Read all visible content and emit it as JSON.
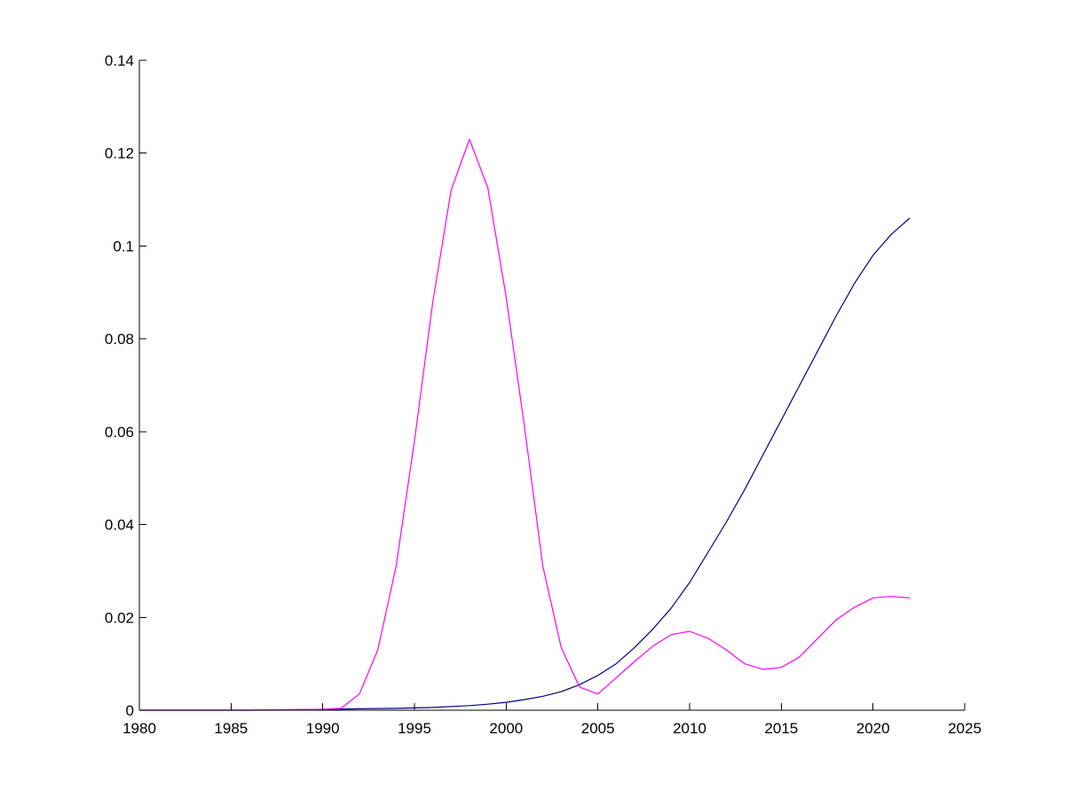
{
  "chart_data": {
    "type": "line",
    "title": "",
    "xlabel": "",
    "ylabel": "",
    "xlim": [
      1980,
      2025
    ],
    "ylim": [
      0,
      0.14
    ],
    "xticks": [
      1980,
      1985,
      1990,
      1995,
      2000,
      2005,
      2010,
      2015,
      2020,
      2025
    ],
    "yticks": [
      0,
      0.02,
      0.04,
      0.06,
      0.08,
      0.1,
      0.12,
      0.14
    ],
    "xtick_labels": [
      "1980",
      "1985",
      "1990",
      "1995",
      "2000",
      "2005",
      "2010",
      "2015",
      "2020",
      "2025"
    ],
    "ytick_labels": [
      "0",
      "0.02",
      "0.04",
      "0.06",
      "0.08",
      "0.1",
      "0.12",
      "0.14"
    ],
    "grid": false,
    "legend": "none",
    "series": [
      {
        "color": "#000080",
        "x": [
          1980,
          1982,
          1984,
          1986,
          1988,
          1990,
          1992,
          1994,
          1995,
          1996,
          1997,
          1998,
          1999,
          2000,
          2001,
          2002,
          2003,
          2004,
          2005,
          2006,
          2007,
          2008,
          2009,
          2010,
          2011,
          2012,
          2013,
          2014,
          2015,
          2016,
          2017,
          2018,
          2019,
          2020,
          2021,
          2022
        ],
        "y": [
          0,
          0,
          0,
          0,
          0.0001,
          0.0002,
          0.0003,
          0.0004,
          0.0005,
          0.0006,
          0.0008,
          0.001,
          0.0013,
          0.0017,
          0.0023,
          0.003,
          0.004,
          0.0055,
          0.0075,
          0.01,
          0.0135,
          0.0175,
          0.022,
          0.0275,
          0.034,
          0.0405,
          0.0475,
          0.055,
          0.0625,
          0.07,
          0.0775,
          0.085,
          0.092,
          0.098,
          0.1025,
          0.106
        ]
      },
      {
        "color": "#ff00ff",
        "x": [
          1980,
          1982,
          1984,
          1986,
          1988,
          1990,
          1991,
          1992,
          1993,
          1994,
          1995,
          1996,
          1997,
          1998,
          1999,
          2000,
          2001,
          2002,
          2003,
          2004,
          2005,
          2006,
          2007,
          2008,
          2009,
          2010,
          2011,
          2012,
          2013,
          2014,
          2015,
          2016,
          2017,
          2018,
          2019,
          2020,
          2021,
          2022
        ],
        "y": [
          0,
          0,
          0,
          0,
          0.0001,
          0.0002,
          0.0004,
          0.0035,
          0.013,
          0.031,
          0.058,
          0.088,
          0.112,
          0.123,
          0.1125,
          0.089,
          0.061,
          0.031,
          0.0135,
          0.005,
          0.0035,
          0.007,
          0.0105,
          0.0138,
          0.0163,
          0.017,
          0.0155,
          0.013,
          0.01,
          0.0088,
          0.0092,
          0.0115,
          0.0155,
          0.0195,
          0.0222,
          0.0242,
          0.0245,
          0.0242
        ]
      }
    ]
  }
}
